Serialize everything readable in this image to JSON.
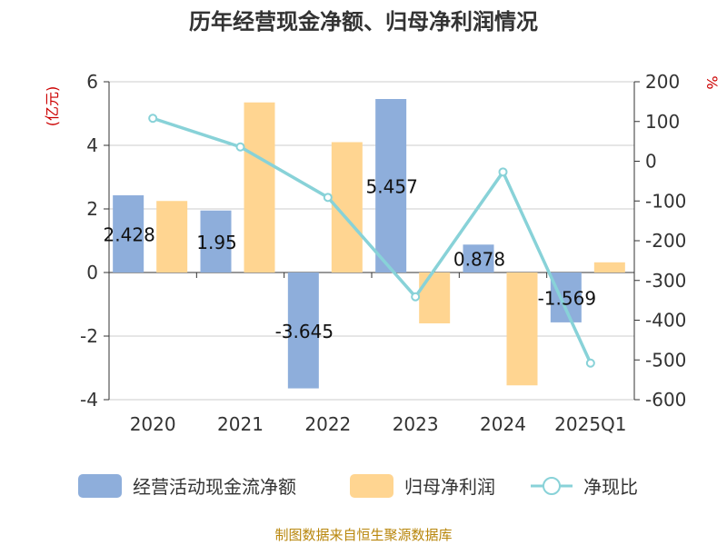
{
  "chart_data": {
    "type": "bar",
    "title": "历年经营现金净额、归母净利润情况",
    "categories": [
      "2020",
      "2021",
      "2022",
      "2023",
      "2024",
      "2025Q1"
    ],
    "series": [
      {
        "name": "经营活动现金流净额",
        "kind": "bar",
        "axis": "left",
        "color": "#8eaedb",
        "values": [
          2.428,
          1.95,
          -3.645,
          5.457,
          0.878,
          -1.569
        ],
        "labels": [
          "2.428",
          "1.95",
          "-3.645",
          "5.457",
          "0.878",
          "-1.569"
        ]
      },
      {
        "name": "归母净利润",
        "kind": "bar",
        "axis": "left",
        "color": "#ffd591",
        "values": [
          2.25,
          5.35,
          4.1,
          -1.6,
          -3.55,
          0.32
        ]
      },
      {
        "name": "净现比",
        "kind": "line",
        "axis": "right",
        "color": "#88d2d8",
        "values": [
          108,
          36,
          -91,
          -341,
          -27,
          -508
        ]
      }
    ],
    "left_axis": {
      "unit": "(亿元)",
      "min": -4,
      "max": 6,
      "ticks": [
        "6",
        "4",
        "2",
        "0",
        "-2",
        "-4"
      ],
      "tick_values": [
        6,
        4,
        2,
        0,
        -2,
        -4
      ]
    },
    "right_axis": {
      "unit": "%",
      "min": -600,
      "max": 200,
      "ticks": [
        "200",
        "100",
        "0",
        "-100",
        "-200",
        "-300",
        "-400",
        "-500",
        "-600"
      ],
      "tick_values": [
        200,
        100,
        0,
        -100,
        -200,
        -300,
        -400,
        -500,
        -600
      ]
    },
    "grid": true,
    "legend_position": "bottom",
    "source": "制图数据来自恒生聚源数据库"
  }
}
